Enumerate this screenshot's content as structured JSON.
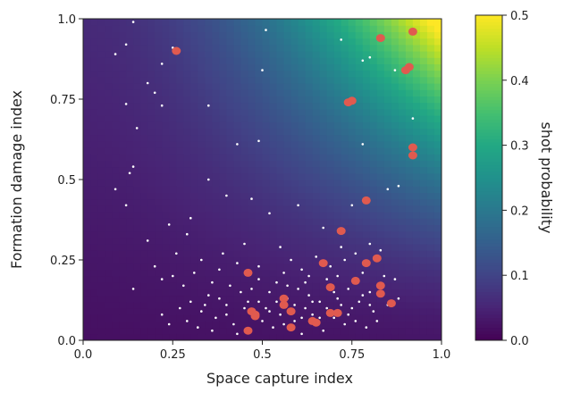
{
  "chart_data": {
    "type": "heatmap",
    "title": "",
    "xlabel": "Space capture index",
    "ylabel": "Formation damage index",
    "colorbar_label": "shot probability",
    "xlim": [
      0.0,
      1.0
    ],
    "ylim": [
      0.0,
      1.0
    ],
    "clim": [
      0.0,
      0.5
    ],
    "colormap": "viridis",
    "grid": false,
    "x_ticks": [
      "0.0",
      "0.25",
      "0.5",
      "0.75",
      "1.0"
    ],
    "y_ticks": [
      "0.0",
      "0.25",
      "0.5",
      "0.75",
      "1.0"
    ],
    "colorbar_ticks": [
      "0.0",
      "0.1",
      "0.2",
      "0.3",
      "0.4",
      "0.5"
    ],
    "series": [
      {
        "marker_color": "#e05a4f",
        "points": [
          [
            0.26,
            0.9
          ],
          [
            0.83,
            0.94
          ],
          [
            0.92,
            0.96
          ],
          [
            0.9,
            0.84
          ],
          [
            0.91,
            0.85
          ],
          [
            0.74,
            0.74
          ],
          [
            0.75,
            0.745
          ],
          [
            0.92,
            0.6
          ],
          [
            0.92,
            0.575
          ],
          [
            0.79,
            0.435
          ],
          [
            0.72,
            0.34
          ],
          [
            0.67,
            0.24
          ],
          [
            0.79,
            0.24
          ],
          [
            0.82,
            0.255
          ],
          [
            0.46,
            0.21
          ],
          [
            0.76,
            0.185
          ],
          [
            0.69,
            0.165
          ],
          [
            0.83,
            0.17
          ],
          [
            0.83,
            0.145
          ],
          [
            0.86,
            0.115
          ],
          [
            0.56,
            0.13
          ],
          [
            0.56,
            0.11
          ],
          [
            0.58,
            0.09
          ],
          [
            0.47,
            0.09
          ],
          [
            0.48,
            0.08
          ],
          [
            0.48,
            0.075
          ],
          [
            0.64,
            0.06
          ],
          [
            0.69,
            0.085
          ],
          [
            0.71,
            0.085
          ],
          [
            0.65,
            0.055
          ],
          [
            0.46,
            0.03
          ],
          [
            0.58,
            0.04
          ]
        ]
      },
      {
        "marker_color": "#ffffff",
        "points": [
          [
            0.14,
            0.99
          ],
          [
            0.51,
            0.965
          ],
          [
            0.72,
            0.935
          ],
          [
            0.12,
            0.92
          ],
          [
            0.25,
            0.91
          ],
          [
            0.09,
            0.89
          ],
          [
            0.22,
            0.86
          ],
          [
            0.5,
            0.84
          ],
          [
            0.78,
            0.87
          ],
          [
            0.8,
            0.88
          ],
          [
            0.87,
            0.84
          ],
          [
            0.18,
            0.8
          ],
          [
            0.2,
            0.77
          ],
          [
            0.12,
            0.735
          ],
          [
            0.22,
            0.73
          ],
          [
            0.35,
            0.73
          ],
          [
            0.15,
            0.66
          ],
          [
            0.49,
            0.62
          ],
          [
            0.43,
            0.61
          ],
          [
            0.78,
            0.61
          ],
          [
            0.92,
            0.69
          ],
          [
            0.13,
            0.52
          ],
          [
            0.14,
            0.54
          ],
          [
            0.35,
            0.5
          ],
          [
            0.09,
            0.47
          ],
          [
            0.12,
            0.42
          ],
          [
            0.4,
            0.45
          ],
          [
            0.47,
            0.44
          ],
          [
            0.6,
            0.42
          ],
          [
            0.52,
            0.395
          ],
          [
            0.75,
            0.42
          ],
          [
            0.85,
            0.47
          ],
          [
            0.88,
            0.48
          ],
          [
            0.3,
            0.38
          ],
          [
            0.24,
            0.36
          ],
          [
            0.18,
            0.31
          ],
          [
            0.29,
            0.33
          ],
          [
            0.45,
            0.3
          ],
          [
            0.55,
            0.29
          ],
          [
            0.67,
            0.35
          ],
          [
            0.72,
            0.29
          ],
          [
            0.2,
            0.23
          ],
          [
            0.25,
            0.2
          ],
          [
            0.33,
            0.25
          ],
          [
            0.38,
            0.22
          ],
          [
            0.14,
            0.16
          ],
          [
            0.22,
            0.19
          ],
          [
            0.28,
            0.17
          ],
          [
            0.3,
            0.12
          ],
          [
            0.33,
            0.09
          ],
          [
            0.22,
            0.08
          ],
          [
            0.24,
            0.05
          ],
          [
            0.35,
            0.14
          ],
          [
            0.37,
            0.07
          ],
          [
            0.4,
            0.11
          ],
          [
            0.42,
            0.05
          ],
          [
            0.44,
            0.15
          ],
          [
            0.46,
            0.12
          ],
          [
            0.5,
            0.06
          ],
          [
            0.51,
            0.1
          ],
          [
            0.52,
            0.15
          ],
          [
            0.53,
            0.04
          ],
          [
            0.54,
            0.18
          ],
          [
            0.55,
            0.08
          ],
          [
            0.57,
            0.13
          ],
          [
            0.59,
            0.06
          ],
          [
            0.6,
            0.16
          ],
          [
            0.61,
            0.02
          ],
          [
            0.62,
            0.1
          ],
          [
            0.63,
            0.14
          ],
          [
            0.64,
            0.08
          ],
          [
            0.66,
            0.12
          ],
          [
            0.67,
            0.03
          ],
          [
            0.68,
            0.19
          ],
          [
            0.7,
            0.07
          ],
          [
            0.71,
            0.13
          ],
          [
            0.73,
            0.05
          ],
          [
            0.74,
            0.16
          ],
          [
            0.75,
            0.1
          ],
          [
            0.77,
            0.12
          ],
          [
            0.78,
            0.21
          ],
          [
            0.79,
            0.04
          ],
          [
            0.8,
            0.15
          ],
          [
            0.81,
            0.09
          ],
          [
            0.82,
            0.06
          ],
          [
            0.84,
            0.2
          ],
          [
            0.85,
            0.11
          ],
          [
            0.26,
            0.27
          ],
          [
            0.31,
            0.21
          ],
          [
            0.36,
            0.18
          ],
          [
            0.39,
            0.27
          ],
          [
            0.41,
            0.17
          ],
          [
            0.43,
            0.24
          ],
          [
            0.49,
            0.19
          ],
          [
            0.49,
            0.23
          ],
          [
            0.56,
            0.21
          ],
          [
            0.58,
            0.25
          ],
          [
            0.61,
            0.22
          ],
          [
            0.63,
            0.2
          ],
          [
            0.65,
            0.26
          ],
          [
            0.69,
            0.23
          ],
          [
            0.71,
            0.2
          ],
          [
            0.73,
            0.25
          ],
          [
            0.76,
            0.27
          ],
          [
            0.8,
            0.3
          ],
          [
            0.83,
            0.28
          ],
          [
            0.87,
            0.19
          ],
          [
            0.88,
            0.13
          ],
          [
            0.27,
            0.1
          ],
          [
            0.29,
            0.06
          ],
          [
            0.32,
            0.04
          ],
          [
            0.34,
            0.11
          ],
          [
            0.36,
            0.03
          ],
          [
            0.38,
            0.13
          ],
          [
            0.4,
            0.08
          ],
          [
            0.43,
            0.02
          ],
          [
            0.45,
            0.1
          ],
          [
            0.47,
            0.16
          ],
          [
            0.49,
            0.12
          ],
          [
            0.52,
            0.09
          ],
          [
            0.54,
            0.12
          ],
          [
            0.56,
            0.05
          ],
          [
            0.57,
            0.17
          ],
          [
            0.59,
            0.11
          ],
          [
            0.61,
            0.07
          ],
          [
            0.62,
            0.18
          ],
          [
            0.64,
            0.12
          ],
          [
            0.66,
            0.07
          ],
          [
            0.68,
            0.1
          ],
          [
            0.7,
            0.15
          ],
          [
            0.72,
            0.11
          ],
          [
            0.74,
            0.08
          ],
          [
            0.76,
            0.06
          ],
          [
            0.78,
            0.14
          ],
          [
            0.8,
            0.11
          ]
        ]
      }
    ]
  }
}
